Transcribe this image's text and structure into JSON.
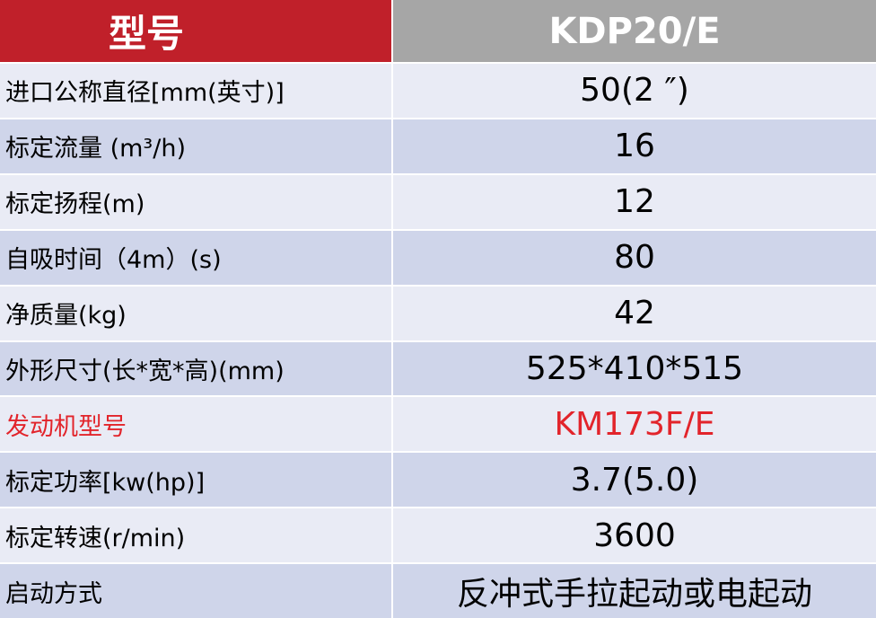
{
  "header": {
    "label": "型号",
    "value": "KDP20/E"
  },
  "rows": [
    [
      "进口公称直径[mm(英寸)]",
      "50(2 ″)"
    ],
    [
      "标定流量 (m³/h)",
      "16"
    ],
    [
      "标定扬程(m)",
      "12"
    ],
    [
      "自吸时间（4m）(s)",
      "80"
    ],
    [
      "净质量(kg)",
      "42"
    ],
    [
      "外形尺寸(长*宽*高)(mm)",
      "525*410*515"
    ],
    [
      "发动机型号",
      "KM173F/E"
    ],
    [
      "标定功率[kw(hp)]",
      "3.7(5.0)"
    ],
    [
      "标定转速(r/min)",
      "3600"
    ],
    [
      "启动方式",
      "反冲式手拉起动或电起动"
    ]
  ]
}
